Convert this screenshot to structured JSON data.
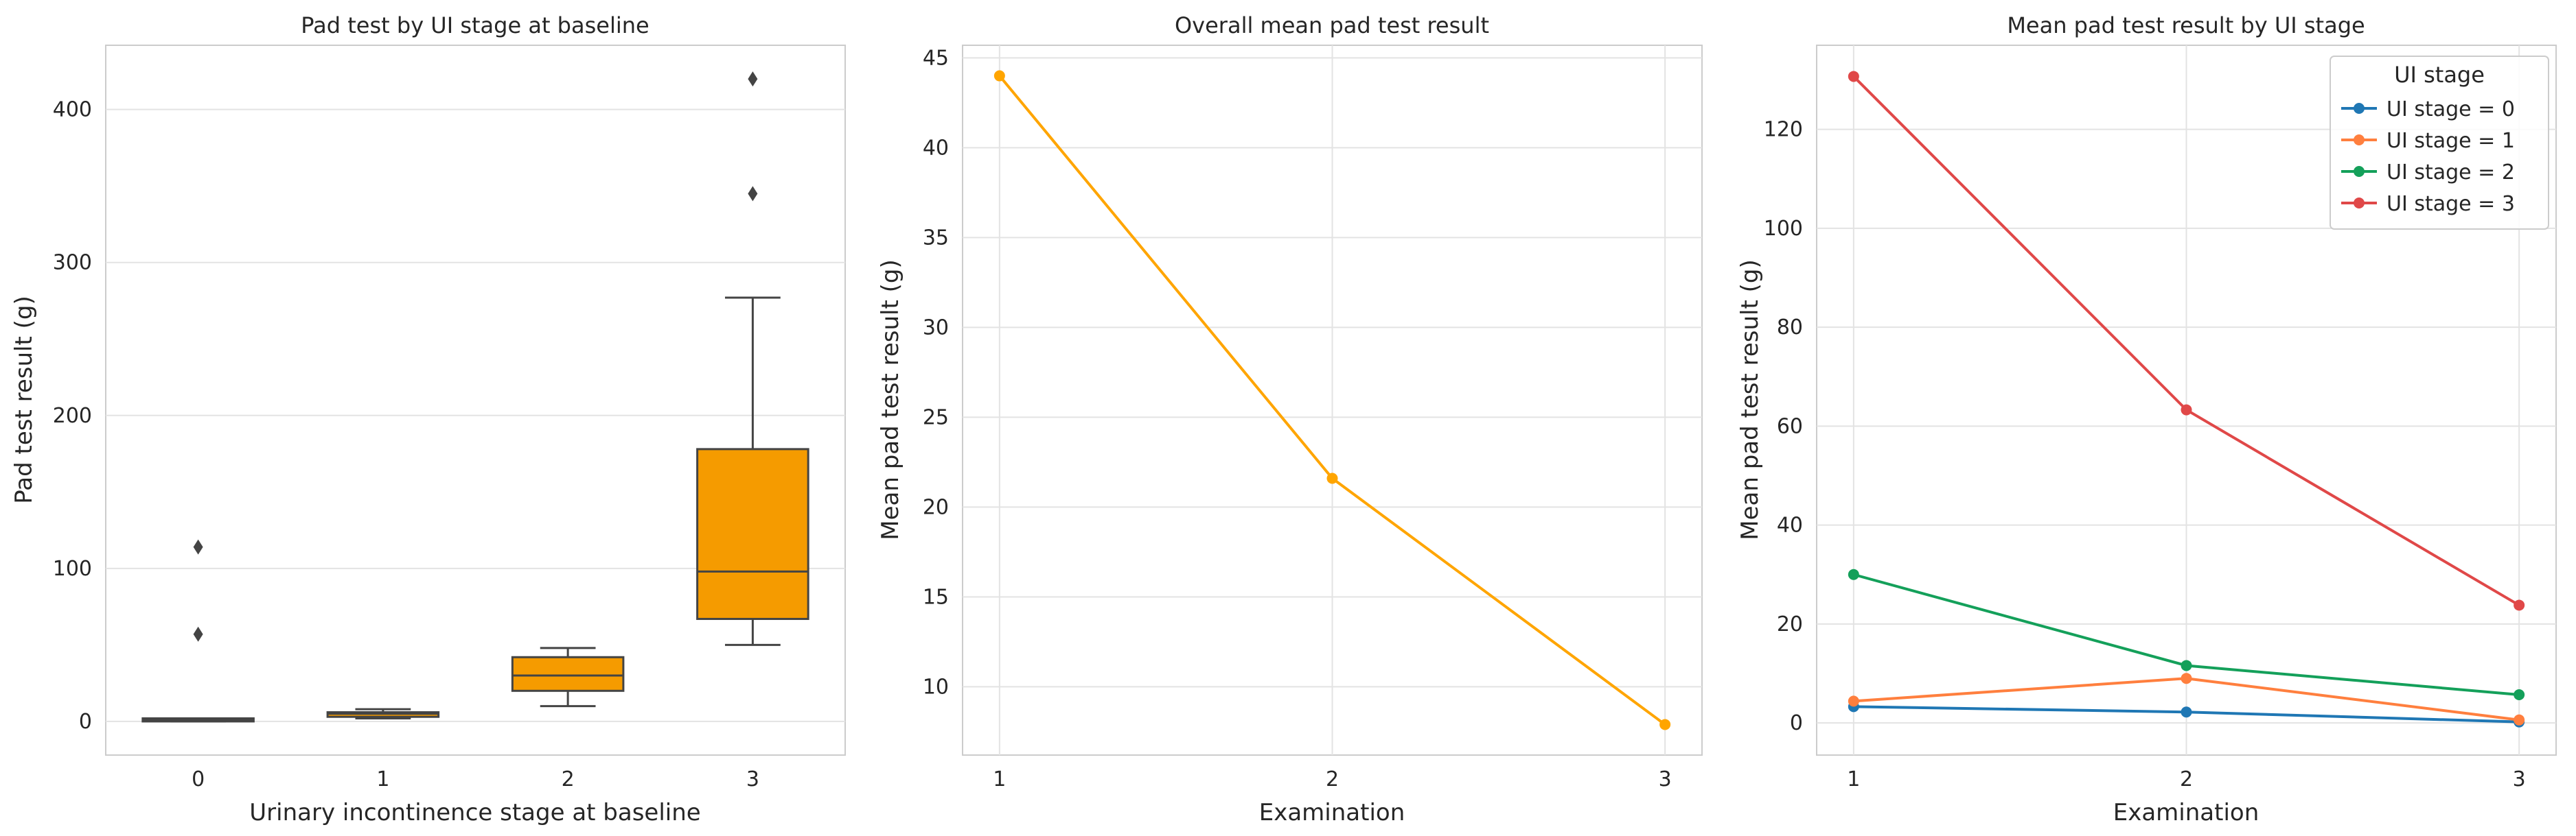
{
  "chart_data": [
    {
      "type": "box",
      "title": "Pad test by UI stage at baseline",
      "xlabel": "Urinary incontinence stage at baseline",
      "ylabel": "Pad test result (g)",
      "categories": [
        "0",
        "1",
        "2",
        "3"
      ],
      "yticks": [
        0,
        100,
        200,
        300,
        400
      ],
      "ylim": [
        -22,
        442
      ],
      "grid": true,
      "box_color": "#f59b00",
      "boxes": [
        {
          "category": "0",
          "q1": 0,
          "median": 1,
          "q3": 2,
          "whisker_low": 0,
          "whisker_high": 2,
          "outliers": [
            57,
            114
          ]
        },
        {
          "category": "1",
          "q1": 3,
          "median": 5,
          "q3": 6,
          "whisker_low": 2,
          "whisker_high": 8,
          "outliers": []
        },
        {
          "category": "2",
          "q1": 20,
          "median": 30,
          "q3": 42,
          "whisker_low": 10,
          "whisker_high": 48,
          "outliers": []
        },
        {
          "category": "3",
          "q1": 67,
          "median": 98,
          "q3": 178,
          "whisker_low": 50,
          "whisker_high": 277,
          "outliers": [
            345,
            420
          ]
        }
      ]
    },
    {
      "type": "line",
      "title": "Overall mean pad test result",
      "xlabel": "Examination",
      "ylabel": "Mean pad test result (g)",
      "x": [
        1,
        2,
        3
      ],
      "yticks": [
        10,
        15,
        20,
        25,
        30,
        35,
        40,
        45
      ],
      "ylim": [
        6.2,
        45.7
      ],
      "grid": true,
      "series": [
        {
          "values": [
            44.0,
            21.6,
            7.9
          ],
          "color": "#ffa500"
        }
      ]
    },
    {
      "type": "line",
      "title": "Mean pad test result by UI stage",
      "xlabel": "Examination",
      "ylabel": "Mean pad test result (g)",
      "x": [
        1,
        2,
        3
      ],
      "yticks": [
        0,
        20,
        40,
        60,
        80,
        100,
        120
      ],
      "ylim": [
        -6.5,
        137
      ],
      "grid": true,
      "legend": {
        "title": "UI stage",
        "placement": "top-right"
      },
      "series": [
        {
          "name": "UI stage = 0",
          "values": [
            3.3,
            2.2,
            0.2
          ],
          "color": "#1f77b4"
        },
        {
          "name": "UI stage = 1",
          "values": [
            4.4,
            9.0,
            0.6
          ],
          "color": "#ff7f3e"
        },
        {
          "name": "UI stage = 2",
          "values": [
            30.0,
            11.6,
            5.7
          ],
          "color": "#14a05a"
        },
        {
          "name": "UI stage = 3",
          "values": [
            130.7,
            63.3,
            23.8
          ],
          "color": "#e04848"
        }
      ]
    }
  ]
}
